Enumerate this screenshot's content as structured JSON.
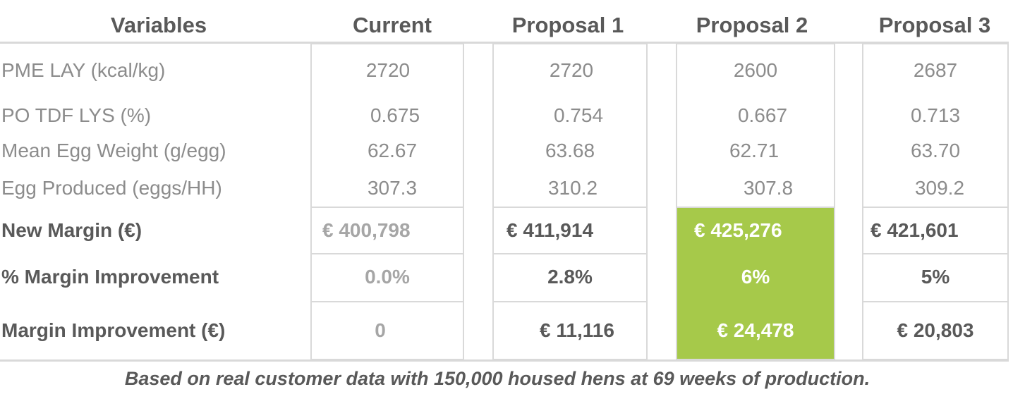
{
  "headers": {
    "variables": "Variables",
    "current": "Current",
    "proposal1": "Proposal 1",
    "proposal2": "Proposal 2",
    "proposal3": "Proposal 3"
  },
  "rows": [
    {
      "label": "PME LAY (kcal/kg)",
      "current": "2720",
      "p1": "2720",
      "p2": "2600",
      "p3": "2687"
    },
    {
      "label": "PO TDF LYS (%)",
      "current": "0.675",
      "p1": "0.754",
      "p2": "0.667",
      "p3": "0.713"
    },
    {
      "label": "Mean Egg Weight (g/egg)",
      "current": "62.67",
      "p1": "63.68",
      "p2": "62.71",
      "p3": "63.70"
    },
    {
      "label": "Egg Produced (eggs/HH)",
      "current": "307.3",
      "p1": "310.2",
      "p2": "307.8",
      "p3": "309.2"
    },
    {
      "label": "New Margin (€)",
      "current": "€ 400,798",
      "p1": "€ 411,914",
      "p2": "€ 425,276",
      "p3": "€ 421,601"
    },
    {
      "label": "% Margin Improvement",
      "current": "0.0%",
      "p1": "2.8%",
      "p2": "6%",
      "p3": "5%"
    },
    {
      "label": "Margin Improvement (€)",
      "current": "0",
      "p1": "€ 11,116",
      "p2": "€ 24,478",
      "p3": "€ 20,803"
    }
  ],
  "highlight_color": "#a6c94a",
  "footnote": "Based on real customer data with 150,000 housed hens at 69 weeks of production."
}
